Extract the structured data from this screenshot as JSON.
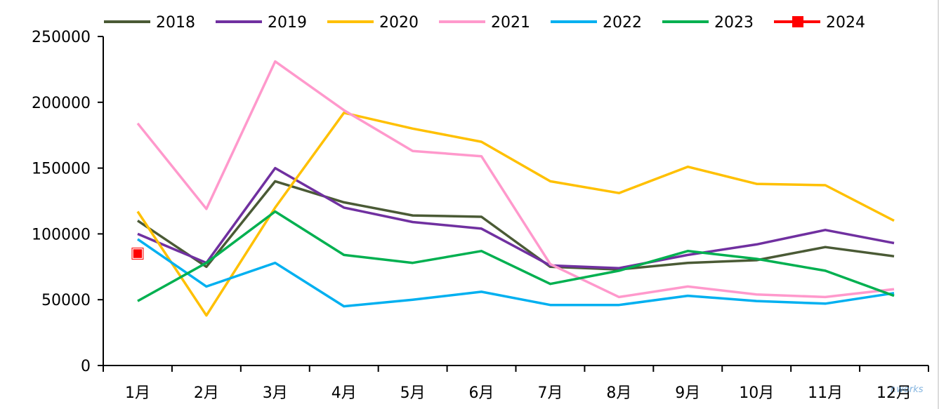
{
  "chart_data": {
    "type": "line",
    "title": "",
    "xlabel": "",
    "ylabel": "",
    "ylim": [
      0,
      250000
    ],
    "yticks": [
      "250000",
      "200000",
      "150000",
      "100000",
      "50000",
      "0"
    ],
    "categories": [
      "1月",
      "2月",
      "3月",
      "4月",
      "5月",
      "6月",
      "7月",
      "8月",
      "9月",
      "10月",
      "11月",
      "12月"
    ],
    "grid": false,
    "legend_position": "top",
    "series": [
      {
        "name": "2018",
        "color": "#4a5a35",
        "values": [
          110000,
          75000,
          140000,
          124000,
          114000,
          113000,
          75000,
          73000,
          78000,
          80000,
          90000,
          83000
        ]
      },
      {
        "name": "2019",
        "color": "#7030a0",
        "values": [
          100000,
          78000,
          150000,
          120000,
          109000,
          104000,
          76000,
          74000,
          84000,
          92000,
          103000,
          93000
        ]
      },
      {
        "name": "2020",
        "color": "#ffc000",
        "values": [
          117000,
          38000,
          120000,
          192000,
          180000,
          170000,
          140000,
          131000,
          151000,
          138000,
          137000,
          110000
        ]
      },
      {
        "name": "2021",
        "color": "#ff99cc",
        "values": [
          184000,
          119000,
          231000,
          194000,
          163000,
          159000,
          77000,
          52000,
          60000,
          54000,
          52000,
          58000
        ]
      },
      {
        "name": "2022",
        "color": "#00b0f0",
        "values": [
          96000,
          60000,
          78000,
          45000,
          50000,
          56000,
          46000,
          46000,
          53000,
          49000,
          47000,
          55000
        ]
      },
      {
        "name": "2023",
        "color": "#00b050",
        "values": [
          49000,
          78000,
          117000,
          84000,
          78000,
          87000,
          62000,
          72000,
          87000,
          81000,
          72000,
          53000
        ]
      },
      {
        "name": "2024",
        "color": "#ff0000",
        "marker": "square",
        "values": [
          85000,
          null,
          null,
          null,
          null,
          null,
          null,
          null,
          null,
          null,
          null,
          null
        ]
      }
    ]
  },
  "watermark": "r.works"
}
